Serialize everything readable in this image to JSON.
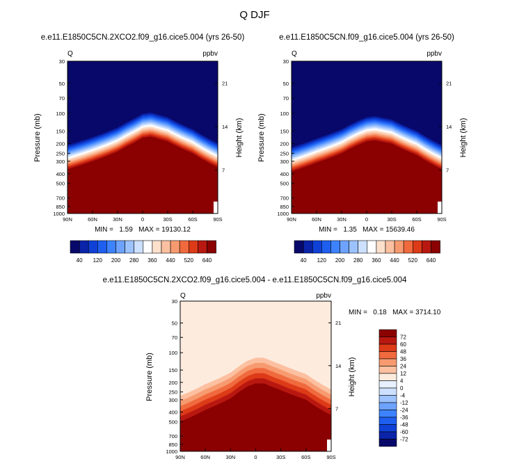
{
  "figure_title": "Q DJF",
  "colors": {
    "seq_a": [
      "#08086b",
      "#0a23a8",
      "#0f41d6",
      "#1f5ff0",
      "#3d83ff",
      "#6da3ff",
      "#9cc2ff",
      "#cde0ff",
      "#ffffff",
      "#fde0cc",
      "#fcc0a0",
      "#f79a70",
      "#f06a3e",
      "#dd3a18",
      "#b81810",
      "#8b0000"
    ],
    "diff": [
      "#08086b",
      "#0a23a8",
      "#0f41d6",
      "#1f5ff0",
      "#3d83ff",
      "#6da3ff",
      "#9cc2ff",
      "#cde0ff",
      "#e8f1ff",
      "#fdebde",
      "#fcc0a0",
      "#f79a70",
      "#f06a3e",
      "#dd3a18",
      "#b81810",
      "#8b0000"
    ]
  },
  "chart_data": [
    {
      "type": "heatmap",
      "id": "panel_a",
      "title": "e.e11.E1850C5CN.2XCO2.f09_g16.cice5.004 (yrs 26-50)",
      "left_label": "Q",
      "right_label": "ppbv",
      "ylabel": "Pressure (mb)",
      "ylabel_right": "Height (km)",
      "x_ticks": [
        "90N",
        "60N",
        "30N",
        "0",
        "30S",
        "60S",
        "90S"
      ],
      "x_tick_lat": [
        90,
        60,
        30,
        0,
        -30,
        -60,
        -90
      ],
      "y_ticks": [
        "30",
        "50",
        "70",
        "100",
        "150",
        "200",
        "250",
        "300",
        "400",
        "500",
        "700",
        "850",
        "1000"
      ],
      "y_tick_p": [
        30,
        50,
        70,
        100,
        150,
        200,
        250,
        300,
        400,
        500,
        700,
        850,
        1000
      ],
      "right_ticks": [
        "21",
        "14",
        "7"
      ],
      "right_tick_km": [
        21,
        14,
        7
      ],
      "ylim": [
        1000,
        30
      ],
      "xlim": [
        90,
        -90
      ],
      "min": 1.59,
      "max": 19130.12,
      "stats": "MIN =   1.59   MAX = 19130.12",
      "contour_levels": [
        40,
        80,
        120,
        160,
        200,
        240,
        280,
        320,
        360,
        400,
        440,
        480,
        520,
        560,
        600,
        640
      ],
      "tropopause_profile": {
        "lat": [
          90,
          60,
          30,
          20,
          10,
          0,
          -10,
          -30,
          -60,
          -90
        ],
        "p": [
          360,
          300,
          240,
          215,
          195,
          175,
          170,
          190,
          250,
          345
        ]
      },
      "colorbar": {
        "labels": [
          "40",
          "120",
          "200",
          "280",
          "360",
          "440",
          "520",
          "640"
        ]
      }
    },
    {
      "type": "heatmap",
      "id": "panel_b",
      "title": "e.e11.E1850C5CN.f09_g16.cice5.004 (yrs 26-50)",
      "left_label": "Q",
      "right_label": "ppbv",
      "ylabel": "Pressure (mb)",
      "ylabel_right": "Height (km)",
      "x_ticks": [
        "90N",
        "60N",
        "30N",
        "0",
        "30S",
        "60S",
        "90S"
      ],
      "x_tick_lat": [
        90,
        60,
        30,
        0,
        -30,
        -60,
        -90
      ],
      "y_ticks": [
        "30",
        "50",
        "70",
        "100",
        "150",
        "200",
        "250",
        "300",
        "400",
        "500",
        "700",
        "850",
        "1000"
      ],
      "y_tick_p": [
        30,
        50,
        70,
        100,
        150,
        200,
        250,
        300,
        400,
        500,
        700,
        850,
        1000
      ],
      "right_ticks": [
        "21",
        "14",
        "7"
      ],
      "right_tick_km": [
        21,
        14,
        7
      ],
      "ylim": [
        1000,
        30
      ],
      "xlim": [
        90,
        -90
      ],
      "min": 1.35,
      "max": 15639.46,
      "stats": "MIN =   1.35   MAX = 15639.46",
      "contour_levels": [
        40,
        80,
        120,
        160,
        200,
        240,
        280,
        320,
        360,
        400,
        440,
        480,
        520,
        560,
        600,
        640
      ],
      "tropopause_profile": {
        "lat": [
          90,
          60,
          30,
          20,
          10,
          0,
          -10,
          -30,
          -60,
          -90
        ],
        "p": [
          380,
          310,
          250,
          225,
          205,
          190,
          185,
          200,
          260,
          360
        ]
      },
      "colorbar": {
        "labels": [
          "40",
          "120",
          "200",
          "280",
          "360",
          "440",
          "520",
          "640"
        ]
      }
    },
    {
      "type": "heatmap",
      "id": "panel_diff",
      "title": "e.e11.E1850C5CN.2XCO2.f09_g16.cice5.004 - e.e11.E1850C5CN.f09_g16.cice5.004",
      "left_label": "Q",
      "right_label": "ppbv",
      "ylabel": "Pressure (mb)",
      "ylabel_right": "Height (km)",
      "x_ticks": [
        "90N",
        "60N",
        "30N",
        "0",
        "30S",
        "60S",
        "90S"
      ],
      "x_tick_lat": [
        90,
        60,
        30,
        0,
        -30,
        -60,
        -90
      ],
      "y_ticks": [
        "30",
        "50",
        "70",
        "100",
        "150",
        "200",
        "250",
        "300",
        "400",
        "500",
        "700",
        "850",
        "1000"
      ],
      "y_tick_p": [
        30,
        50,
        70,
        100,
        150,
        200,
        250,
        300,
        400,
        500,
        700,
        850,
        1000
      ],
      "right_ticks": [
        "21",
        "14",
        "7"
      ],
      "right_tick_km": [
        21,
        14,
        7
      ],
      "ylim": [
        1000,
        30
      ],
      "xlim": [
        90,
        -90
      ],
      "min": 0.18,
      "max": 3714.1,
      "stats": "MIN =   0.18   MAX = 3714.10",
      "contour_levels": [
        -72,
        -60,
        -48,
        -36,
        -24,
        -12,
        -4,
        0,
        4,
        12,
        24,
        36,
        48,
        60,
        72
      ],
      "tropopause_profile": {
        "lat": [
          90,
          60,
          30,
          20,
          10,
          0,
          -10,
          -30,
          -60,
          -90
        ],
        "p": [
          500,
          380,
          290,
          250,
          220,
          205,
          205,
          240,
          300,
          430
        ]
      },
      "colorbar": {
        "labels": [
          "72",
          "60",
          "48",
          "36",
          "24",
          "12",
          "4",
          "0",
          "-4",
          "-12",
          "-24",
          "-36",
          "-48",
          "-60",
          "-72"
        ]
      }
    }
  ]
}
